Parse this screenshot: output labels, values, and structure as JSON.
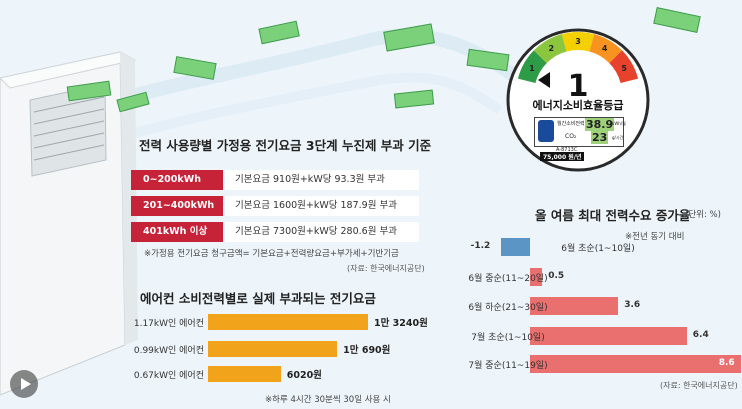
{
  "tier_table": {
    "title": "전력 사용량별 가정용 전기요금 3단계 누진제 부과 기준",
    "rows": [
      {
        "label": "0~200kWh",
        "desc": "기본요금 910원+kW당 93.3원 부과"
      },
      {
        "label": "201~400kWh",
        "desc": "기본요금 1600원+kW당 187.9원 부과"
      },
      {
        "label": "401kWh 이상",
        "desc": "기본요금 7300원+kW당 280.6원 부과"
      }
    ],
    "note": "※가정용 전기요금 청구금액= 기본요금+전력량요금+부가세+기반기금",
    "source": "(자료: 한국에너지공단)"
  },
  "energy_badge": {
    "grade": "1",
    "scale": [
      "1",
      "2",
      "3",
      "4",
      "5"
    ],
    "title": "에너지소비효율등급",
    "rows": [
      {
        "label": "월간소비전력량",
        "value": "38.9",
        "unit": "kWh/월"
      },
      {
        "label": "CO₂",
        "value": "23",
        "unit": "g/시간"
      }
    ],
    "model": "A-8713C",
    "power": "75,000 원/년",
    "colors": {
      "1": "#2e9b47",
      "2": "#8cc63f",
      "3": "#f5d000",
      "4": "#f7931e",
      "5": "#e8412c"
    }
  },
  "chart_data": [
    {
      "type": "bar",
      "orientation": "horizontal",
      "title": "에어컨 소비전력별로 실제 부과되는 전기요금",
      "categories": [
        "1.17kW인 에어컨",
        "0.99kW인 에어컨",
        "0.67kW인 에어컨"
      ],
      "values": [
        13240,
        10690,
        6020
      ],
      "value_labels": [
        "1만 3240원",
        "1만 690원",
        "6020원"
      ],
      "note": "※하루 4시간 30분씩 30일 사용 시",
      "color": "#f2a31c"
    },
    {
      "type": "bar",
      "orientation": "horizontal",
      "title": "올 여름 최대 전력수요 증가율",
      "unit_label": "(단위: %)",
      "subnote": "※전년 동기 대비",
      "categories": [
        "6월 초순(1~10일)",
        "6월 중순(11~20일)",
        "6월 하순(21~30일)",
        "7월 초순(1~10일)",
        "7월 중순(11~19일)"
      ],
      "values": [
        -1.2,
        0.5,
        3.6,
        6.4,
        8.6
      ],
      "value_labels": [
        "-1.2",
        "0.5",
        "3.6",
        "6.4",
        "8.6"
      ],
      "colors": {
        "negative": "#5a95c6",
        "positive": "#ea6f6f"
      },
      "source": "(자료: 한국에너지공단)"
    }
  ]
}
